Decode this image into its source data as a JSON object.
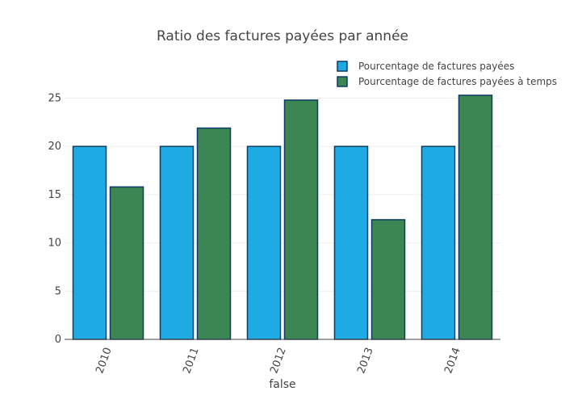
{
  "chart_data": {
    "type": "bar",
    "title": "Ratio des factures payées par année",
    "xlabel": "false",
    "ylabel": "",
    "categories": [
      "2010",
      "2011",
      "2012",
      "2013",
      "2014"
    ],
    "series": [
      {
        "name": "Pourcentage de factures payées",
        "values": [
          20,
          20,
          20,
          20,
          20
        ],
        "color": "#1eaae3"
      },
      {
        "name": "Pourcentage de factures payées à temps",
        "values": [
          15.8,
          21.9,
          24.8,
          12.4,
          25.3
        ],
        "color": "#3b8653"
      }
    ],
    "ylim": [
      0,
      26.8
    ],
    "yticks": [
      0,
      5,
      10,
      15,
      20,
      25
    ],
    "grid": true,
    "legend_position": "top-right",
    "bar_outline_color": "#0d3b66",
    "xtick_rotation": "-70deg"
  }
}
